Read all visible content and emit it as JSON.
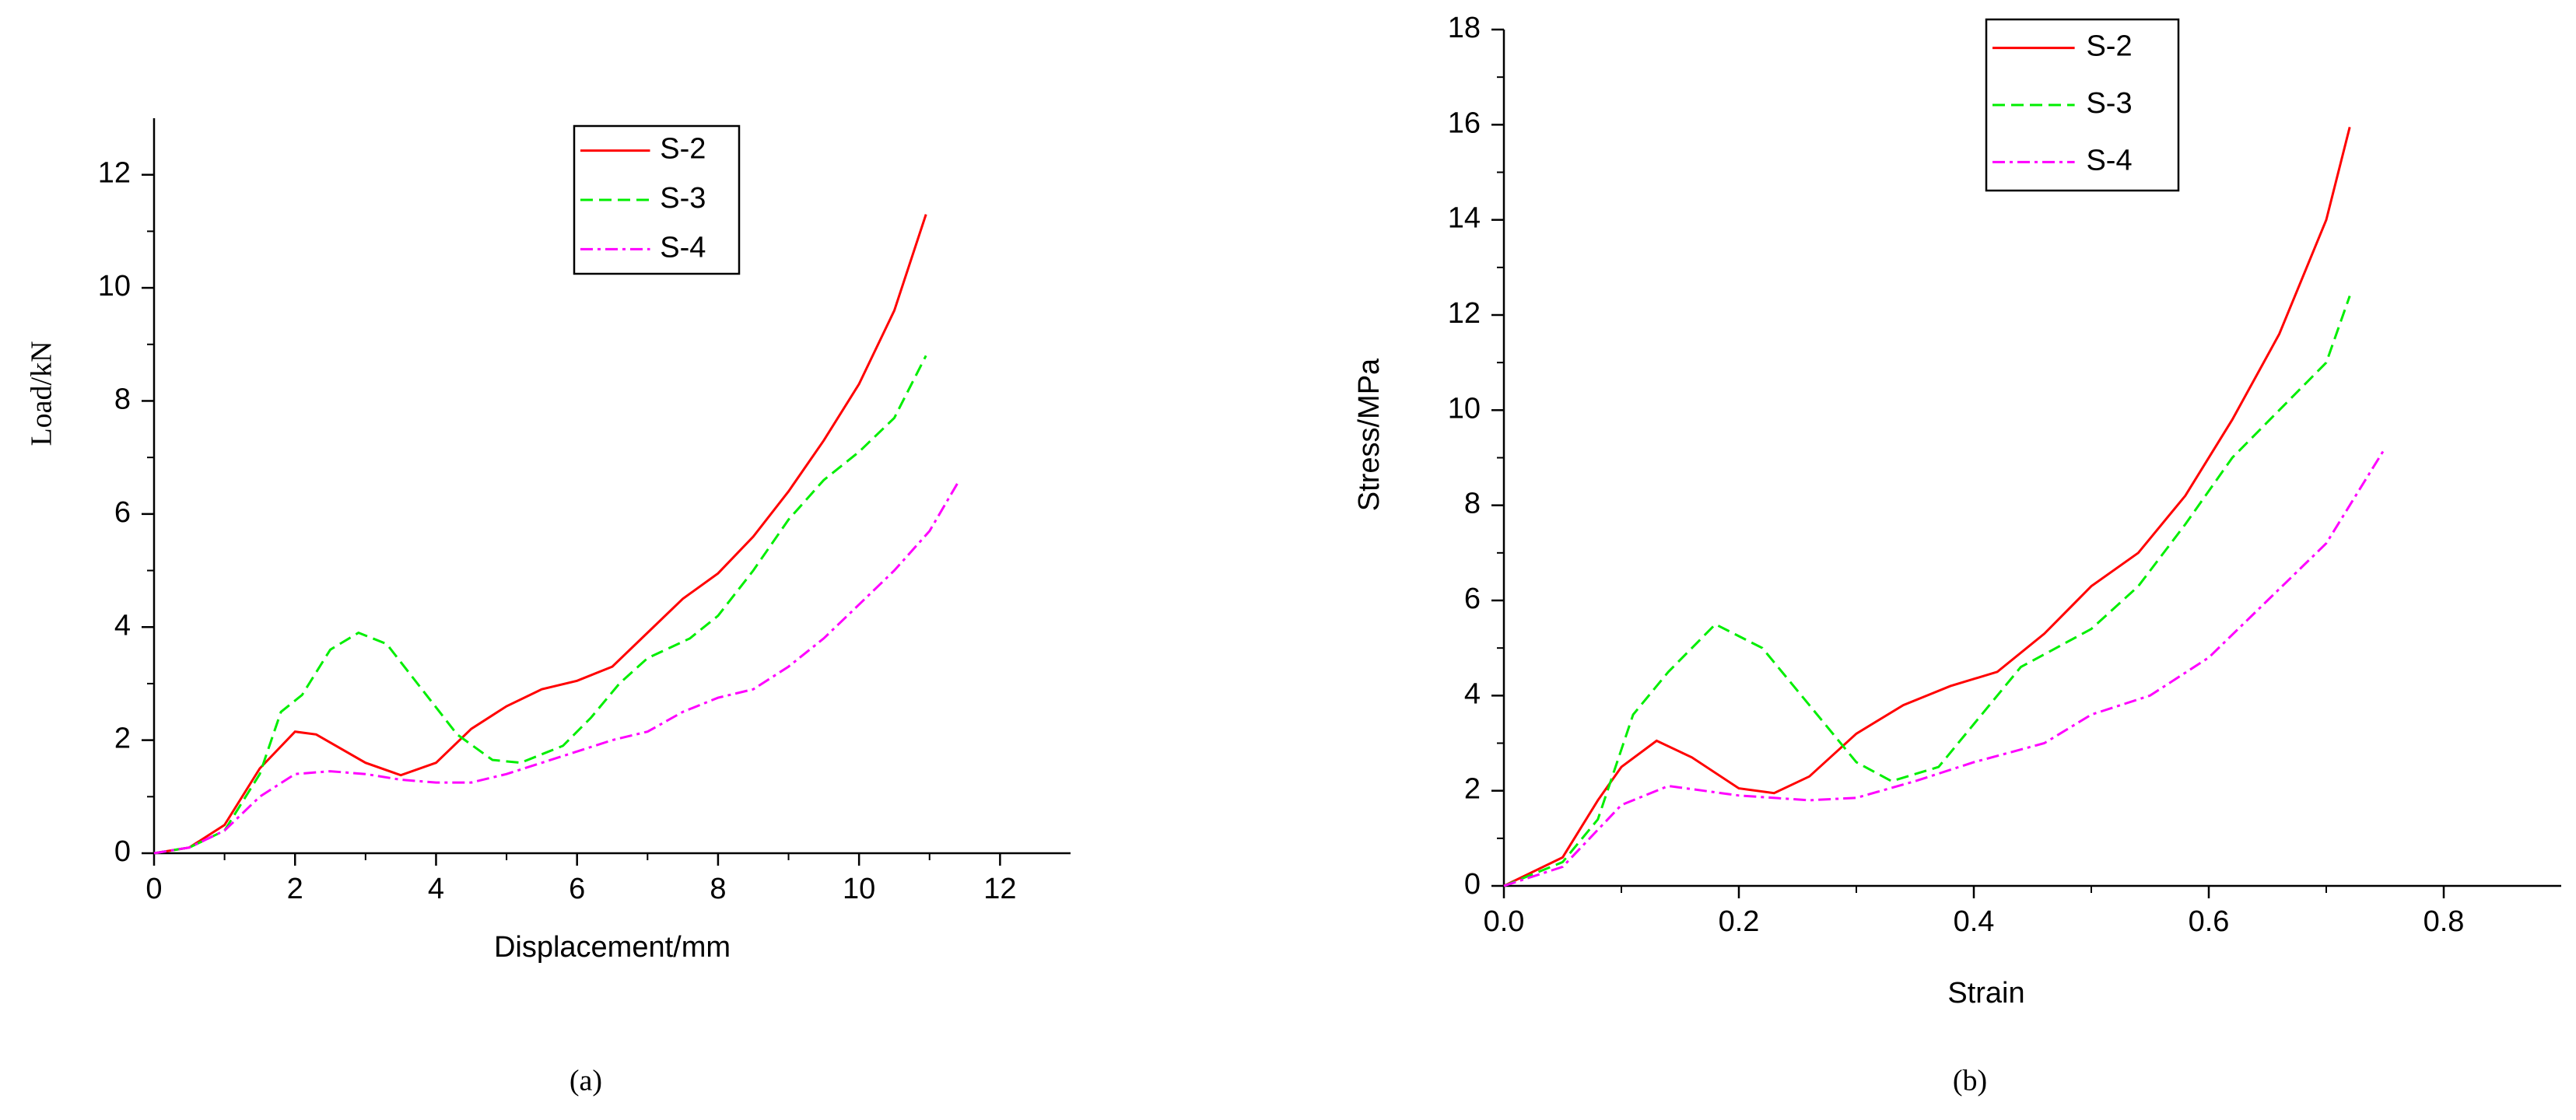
{
  "chart_data": [
    {
      "type": "line",
      "caption": "(a)",
      "x_label": "Displacement/mm",
      "y_label": "Load/kN",
      "xlim": [
        0,
        13
      ],
      "ylim": [
        0,
        13
      ],
      "xticks": [
        0,
        2,
        4,
        6,
        8,
        10,
        12
      ],
      "yticks": [
        0,
        2,
        4,
        6,
        8,
        10,
        12
      ],
      "grid": false,
      "legend": "top",
      "series": [
        {
          "name": "S-2",
          "color": "#ff0000",
          "dash": "solid",
          "x": [
            0,
            0.5,
            1,
            1.5,
            2,
            2.3,
            3,
            3.5,
            4,
            4.5,
            5,
            5.5,
            6,
            6.5,
            7,
            7.5,
            8,
            8.5,
            9,
            9.5,
            10,
            10.5,
            10.95
          ],
          "values": [
            0,
            0.1,
            0.5,
            1.5,
            2.15,
            2.1,
            1.6,
            1.38,
            1.6,
            2.2,
            2.6,
            2.9,
            3.05,
            3.3,
            3.9,
            4.5,
            4.95,
            5.6,
            6.4,
            7.3,
            8.3,
            9.6,
            11.3
          ]
        },
        {
          "name": "S-3",
          "color": "#00ee00",
          "dash": "dash",
          "x": [
            0,
            0.5,
            1,
            1.5,
            1.8,
            2.1,
            2.5,
            2.9,
            3.3,
            3.8,
            4.3,
            4.8,
            5.2,
            5.8,
            6.2,
            6.6,
            7,
            7.6,
            8,
            8.5,
            9,
            9.5,
            10,
            10.5,
            10.95
          ],
          "values": [
            0,
            0.1,
            0.4,
            1.4,
            2.5,
            2.8,
            3.6,
            3.9,
            3.7,
            2.9,
            2.1,
            1.65,
            1.6,
            1.9,
            2.4,
            3.0,
            3.45,
            3.8,
            4.2,
            5.0,
            5.9,
            6.6,
            7.1,
            7.7,
            8.8
          ]
        },
        {
          "name": "S-4",
          "color": "#ff00ff",
          "dash": "dashdot",
          "x": [
            0,
            0.5,
            1,
            1.5,
            2,
            2.5,
            3,
            3.5,
            4,
            4.5,
            5,
            5.5,
            6,
            6.5,
            7,
            7.5,
            8,
            8.5,
            9,
            9.5,
            10,
            10.5,
            11,
            11.4
          ],
          "values": [
            0,
            0.1,
            0.4,
            1.0,
            1.4,
            1.45,
            1.4,
            1.3,
            1.25,
            1.25,
            1.4,
            1.6,
            1.8,
            2.0,
            2.15,
            2.5,
            2.75,
            2.9,
            3.3,
            3.8,
            4.4,
            5.0,
            5.7,
            6.55
          ]
        }
      ]
    },
    {
      "type": "line",
      "caption": "(b)",
      "x_label": "Strain",
      "y_label": "Stress/MPa",
      "xlim": [
        0,
        0.9
      ],
      "ylim": [
        0,
        18
      ],
      "xticks": [
        {
          "value": 0,
          "label": "0.0"
        },
        0.2,
        0.4,
        0.6,
        0.8
      ],
      "yticks": [
        0,
        2,
        4,
        6,
        8,
        10,
        12,
        14,
        16,
        18
      ],
      "grid": false,
      "legend": "top",
      "series": [
        {
          "name": "S-2",
          "color": "#ff0000",
          "dash": "solid",
          "x": [
            0,
            0.05,
            0.08,
            0.1,
            0.13,
            0.16,
            0.2,
            0.23,
            0.26,
            0.3,
            0.34,
            0.38,
            0.42,
            0.46,
            0.5,
            0.54,
            0.58,
            0.62,
            0.66,
            0.7,
            0.72
          ],
          "values": [
            0,
            0.6,
            1.8,
            2.5,
            3.05,
            2.7,
            2.05,
            1.95,
            2.3,
            3.2,
            3.8,
            4.2,
            4.5,
            5.3,
            6.3,
            7.0,
            8.2,
            9.8,
            11.6,
            14.0,
            15.95
          ]
        },
        {
          "name": "S-3",
          "color": "#00ee00",
          "dash": "dash",
          "x": [
            0,
            0.05,
            0.08,
            0.11,
            0.14,
            0.18,
            0.22,
            0.26,
            0.3,
            0.33,
            0.37,
            0.4,
            0.44,
            0.5,
            0.54,
            0.58,
            0.62,
            0.66,
            0.7,
            0.72
          ],
          "values": [
            0,
            0.5,
            1.4,
            3.6,
            4.5,
            5.5,
            5.0,
            3.8,
            2.6,
            2.2,
            2.5,
            3.4,
            4.6,
            5.4,
            6.3,
            7.6,
            9.0,
            10.0,
            11.0,
            12.4
          ]
        },
        {
          "name": "S-4",
          "color": "#ff00ff",
          "dash": "dashdot",
          "x": [
            0,
            0.05,
            0.1,
            0.14,
            0.2,
            0.26,
            0.3,
            0.35,
            0.4,
            0.46,
            0.5,
            0.55,
            0.6,
            0.65,
            0.7,
            0.75
          ],
          "values": [
            0,
            0.4,
            1.7,
            2.1,
            1.9,
            1.8,
            1.85,
            2.2,
            2.6,
            3.0,
            3.6,
            4.0,
            4.8,
            6.0,
            7.2,
            9.2
          ]
        }
      ]
    }
  ]
}
